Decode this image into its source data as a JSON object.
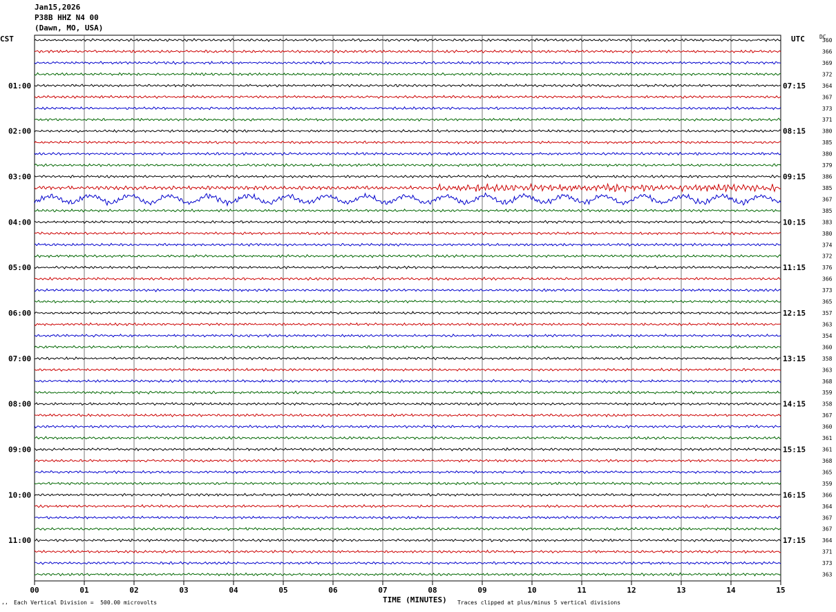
{
  "header": {
    "date": "Jan15,2026",
    "station": "P38B HHZ N4 00",
    "location": "(Dawn, MO, USA)"
  },
  "left_label": "CST",
  "right_label": "UTC",
  "dc_label": "DC",
  "footer": {
    "scale_note": "Each Vertical Division =  500.00 microvolts",
    "clip_note": "Traces clipped at plus/minus 5 vertical divisions",
    "mark": "ʻʻ"
  },
  "chart_data": {
    "type": "line",
    "title": "Jan15,2026 P38B HHZ N4 00 (Dawn, MO, USA)",
    "xlabel": "TIME (MINUTES)",
    "xlim": [
      0,
      15
    ],
    "x_ticks": [
      "00",
      "01",
      "02",
      "03",
      "04",
      "05",
      "06",
      "07",
      "08",
      "09",
      "10",
      "11",
      "12",
      "13",
      "14",
      "15"
    ],
    "trace_colors": [
      "#000000",
      "#cc0000",
      "#0000cc",
      "#006600"
    ],
    "left_hour_labels": [
      "01:00",
      "02:00",
      "03:00",
      "04:00",
      "05:00",
      "06:00",
      "07:00",
      "08:00",
      "09:00",
      "10:00",
      "11:00"
    ],
    "right_hour_labels": [
      "07:15",
      "08:15",
      "09:15",
      "10:15",
      "11:15",
      "12:15",
      "13:15",
      "14:15",
      "15:15",
      "16:15",
      "17:15"
    ],
    "dc_values": [
      360,
      366,
      369,
      372,
      364,
      367,
      373,
      371,
      380,
      385,
      380,
      379,
      386,
      385,
      367,
      385,
      383,
      380,
      374,
      372,
      376,
      366,
      373,
      365,
      357,
      363,
      354,
      360,
      358,
      363,
      368,
      359,
      358,
      367,
      360,
      361,
      361,
      368,
      365,
      359,
      366,
      364,
      367,
      367,
      364,
      371,
      373,
      363
    ],
    "grid": true
  }
}
